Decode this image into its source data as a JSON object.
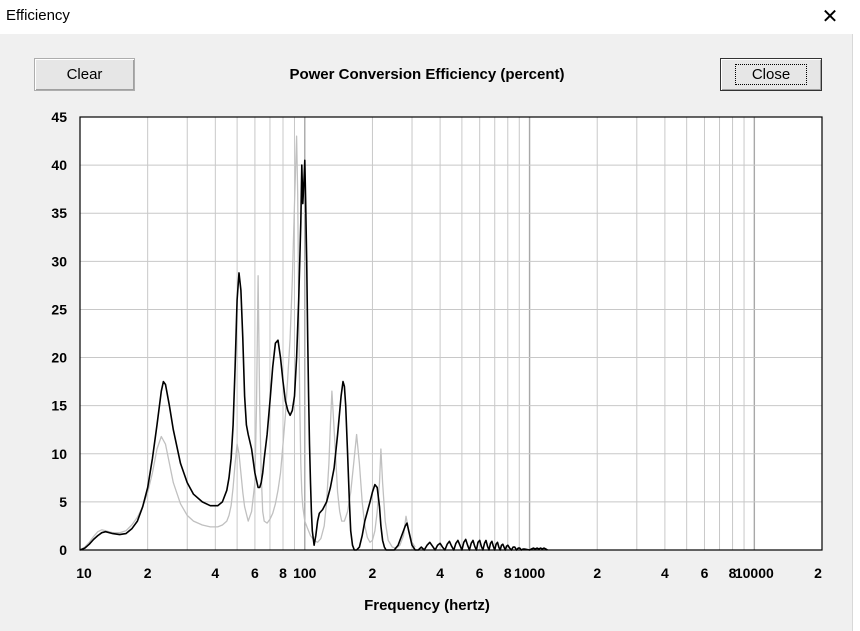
{
  "window": {
    "title": "Efficiency",
    "close_glyph": "✕"
  },
  "toolbar": {
    "clear_label": "Clear",
    "close_label": "Close"
  },
  "chart_data": {
    "type": "line",
    "title": "Power Conversion Efficiency (percent)",
    "xlabel": "Frequency (hertz)",
    "ylabel": "",
    "x_scale": "log",
    "xlim": [
      10,
      20000
    ],
    "ylim": [
      0,
      45
    ],
    "grid": true,
    "y_ticks": [
      0,
      5,
      10,
      15,
      20,
      25,
      30,
      35,
      40,
      45
    ],
    "x_ticks": [
      {
        "value": 10,
        "label": "10"
      },
      {
        "value": 20,
        "label": "2"
      },
      {
        "value": 40,
        "label": "4"
      },
      {
        "value": 60,
        "label": "6"
      },
      {
        "value": 80,
        "label": "8"
      },
      {
        "value": 100,
        "label": "100"
      },
      {
        "value": 200,
        "label": "2"
      },
      {
        "value": 400,
        "label": "4"
      },
      {
        "value": 600,
        "label": "6"
      },
      {
        "value": 800,
        "label": "8"
      },
      {
        "value": 1000,
        "label": "1000"
      },
      {
        "value": 2000,
        "label": "2"
      },
      {
        "value": 4000,
        "label": "4"
      },
      {
        "value": 6000,
        "label": "6"
      },
      {
        "value": 8000,
        "label": "8"
      },
      {
        "value": 10000,
        "label": "10000"
      },
      {
        "value": 20000,
        "label": "2"
      }
    ],
    "colors": {
      "series_primary": "#000000",
      "series_secondary": "#c0c0c0",
      "grid": "#c8c8c8"
    },
    "series": [
      {
        "color": "#c0c0c0",
        "x": [
          10,
          10.5,
          11,
          11.5,
          12,
          12.5,
          13,
          14,
          15,
          16,
          17,
          18,
          19,
          20,
          21,
          22,
          23,
          24,
          25,
          26,
          28,
          30,
          32,
          35,
          38,
          41,
          43,
          45,
          46,
          47,
          48,
          49,
          50,
          51,
          52,
          53,
          54,
          56,
          58,
          60,
          61,
          62,
          63,
          64,
          65,
          66,
          68,
          70,
          72,
          74,
          76,
          78,
          80,
          82,
          84,
          86,
          88,
          90,
          92,
          93,
          94,
          95,
          96,
          97,
          98,
          100,
          103,
          106,
          110,
          114,
          118,
          122,
          125,
          128,
          130,
          132,
          134,
          137,
          140,
          143,
          146,
          150,
          155,
          160,
          165,
          170,
          175,
          180,
          185,
          190,
          195,
          200,
          205,
          210,
          215,
          218,
          222,
          228,
          235,
          245,
          255,
          265,
          275,
          282,
          290,
          300,
          310
        ],
        "y": [
          0,
          0.3,
          0.8,
          1.4,
          1.9,
          2.1,
          2.0,
          1.8,
          1.8,
          2.0,
          2.6,
          3.4,
          4.5,
          6.0,
          8.0,
          10.5,
          11.8,
          11.0,
          9.0,
          7.0,
          4.8,
          3.6,
          3.0,
          2.6,
          2.4,
          2.4,
          2.6,
          3.0,
          3.6,
          4.6,
          6.5,
          9.0,
          11.0,
          10.0,
          8.0,
          6.0,
          4.5,
          3.0,
          4.0,
          7.0,
          15.0,
          28.5,
          15.0,
          8.0,
          4.0,
          3.0,
          2.8,
          3.2,
          3.8,
          4.8,
          6.2,
          8.0,
          11.0,
          14.0,
          18.0,
          22.0,
          28.0,
          36.0,
          43.0,
          37.0,
          25.0,
          15.0,
          9.0,
          6.0,
          4.5,
          3.0,
          2.2,
          1.5,
          1.0,
          0.8,
          1.2,
          2.5,
          5.0,
          9.0,
          13.0,
          16.5,
          14.0,
          10.0,
          6.0,
          4.0,
          3.0,
          3.0,
          4.0,
          6.0,
          9.0,
          12.0,
          9.0,
          5.0,
          2.5,
          1.3,
          0.8,
          1.0,
          2.0,
          4.0,
          7.0,
          10.5,
          7.0,
          3.0,
          1.0,
          0.3,
          0.2,
          0.5,
          1.5,
          3.5,
          2.0,
          0.8,
          0.3
        ]
      },
      {
        "color": "#000000",
        "x": [
          10,
          10.5,
          11,
          11.5,
          12,
          12.5,
          13,
          14,
          15,
          16,
          17,
          18,
          19,
          20,
          21,
          22,
          23,
          23.5,
          24,
          25,
          26,
          28,
          30,
          32,
          35,
          38,
          41,
          43,
          45,
          46,
          47,
          48,
          49,
          50,
          51,
          52,
          53,
          54,
          55,
          56,
          58,
          60,
          62,
          63,
          64,
          65,
          66,
          68,
          70,
          72,
          74,
          76,
          78,
          80,
          82,
          84,
          86,
          88,
          90,
          92,
          94,
          96,
          97,
          98,
          99,
          100,
          101,
          102,
          103,
          104,
          105,
          106,
          107,
          108,
          110,
          112,
          114,
          116,
          118,
          120,
          125,
          130,
          135,
          140,
          145,
          148,
          150,
          152,
          155,
          158,
          160,
          163,
          166,
          170,
          175,
          180,
          185,
          190,
          195,
          200,
          205,
          210,
          215,
          218,
          222,
          226,
          230,
          240,
          250,
          260,
          270,
          280,
          285,
          290,
          300,
          310,
          320,
          330,
          340,
          350,
          360,
          370,
          380,
          390,
          400,
          410,
          420,
          430,
          440,
          450,
          460,
          470,
          480,
          490,
          500,
          510,
          520,
          530,
          540,
          550,
          560,
          570,
          580,
          590,
          600,
          610,
          620,
          630,
          640,
          650,
          660,
          670,
          680,
          690,
          700,
          710,
          720,
          730,
          740,
          750,
          760,
          770,
          780,
          790,
          800,
          815,
          830,
          845,
          860,
          875,
          890,
          905,
          920,
          935,
          950,
          1000,
          1020,
          1040,
          1060,
          1080,
          1100,
          1120,
          1140,
          1160,
          1180,
          1200
        ],
        "y": [
          0,
          0.2,
          0.6,
          1.1,
          1.5,
          1.8,
          1.9,
          1.7,
          1.6,
          1.7,
          2.2,
          3.0,
          4.5,
          6.5,
          9.5,
          13.0,
          16.5,
          17.5,
          17.2,
          15.0,
          12.5,
          9.0,
          7.0,
          5.8,
          5.0,
          4.6,
          4.6,
          5.0,
          6.2,
          7.5,
          9.5,
          13.0,
          19.0,
          26.0,
          28.8,
          27.0,
          22.0,
          16.0,
          13.0,
          12.0,
          10.5,
          8.0,
          6.5,
          6.5,
          7.0,
          8.0,
          9.5,
          12.0,
          15.5,
          19.0,
          21.5,
          21.8,
          20.0,
          17.5,
          15.5,
          14.5,
          14.0,
          14.5,
          16.0,
          20.0,
          26.0,
          34.0,
          40.0,
          36.0,
          38.0,
          40.5,
          36.0,
          30.0,
          22.0,
          16.0,
          11.0,
          7.0,
          4.0,
          2.0,
          0.5,
          1.5,
          3.0,
          3.8,
          4.0,
          4.2,
          5.0,
          6.5,
          8.5,
          12.0,
          16.0,
          17.5,
          17.0,
          15.0,
          10.0,
          5.0,
          2.0,
          0.5,
          0.0,
          0.0,
          0.3,
          1.5,
          3.0,
          4.0,
          5.0,
          6.0,
          6.8,
          6.5,
          4.5,
          2.5,
          1.0,
          0.3,
          0.0,
          0.0,
          0.0,
          0.5,
          1.5,
          2.5,
          2.8,
          2.0,
          0.5,
          0.0,
          0.0,
          0.3,
          0.0,
          0.5,
          0.8,
          0.4,
          0.0,
          0.5,
          0.7,
          0.3,
          0.0,
          0.6,
          0.9,
          0.4,
          0.0,
          0.7,
          1.0,
          0.5,
          0.0,
          0.8,
          1.1,
          0.5,
          0.0,
          0.7,
          1.0,
          0.4,
          0.0,
          0.8,
          1.0,
          0.4,
          0.0,
          0.7,
          1.0,
          0.4,
          0.0,
          0.7,
          0.9,
          0.4,
          0.0,
          0.6,
          0.8,
          0.3,
          0.0,
          0.5,
          0.6,
          0.3,
          0.0,
          0.4,
          0.5,
          0.2,
          0.0,
          0.3,
          0.3,
          0.0,
          0.2,
          0.2,
          0.0,
          0.1,
          0.1,
          0.0,
          0.1,
          0.2,
          0.1,
          0.2,
          0.1,
          0.2,
          0.1,
          0.2,
          0.1,
          0.0
        ]
      }
    ]
  }
}
